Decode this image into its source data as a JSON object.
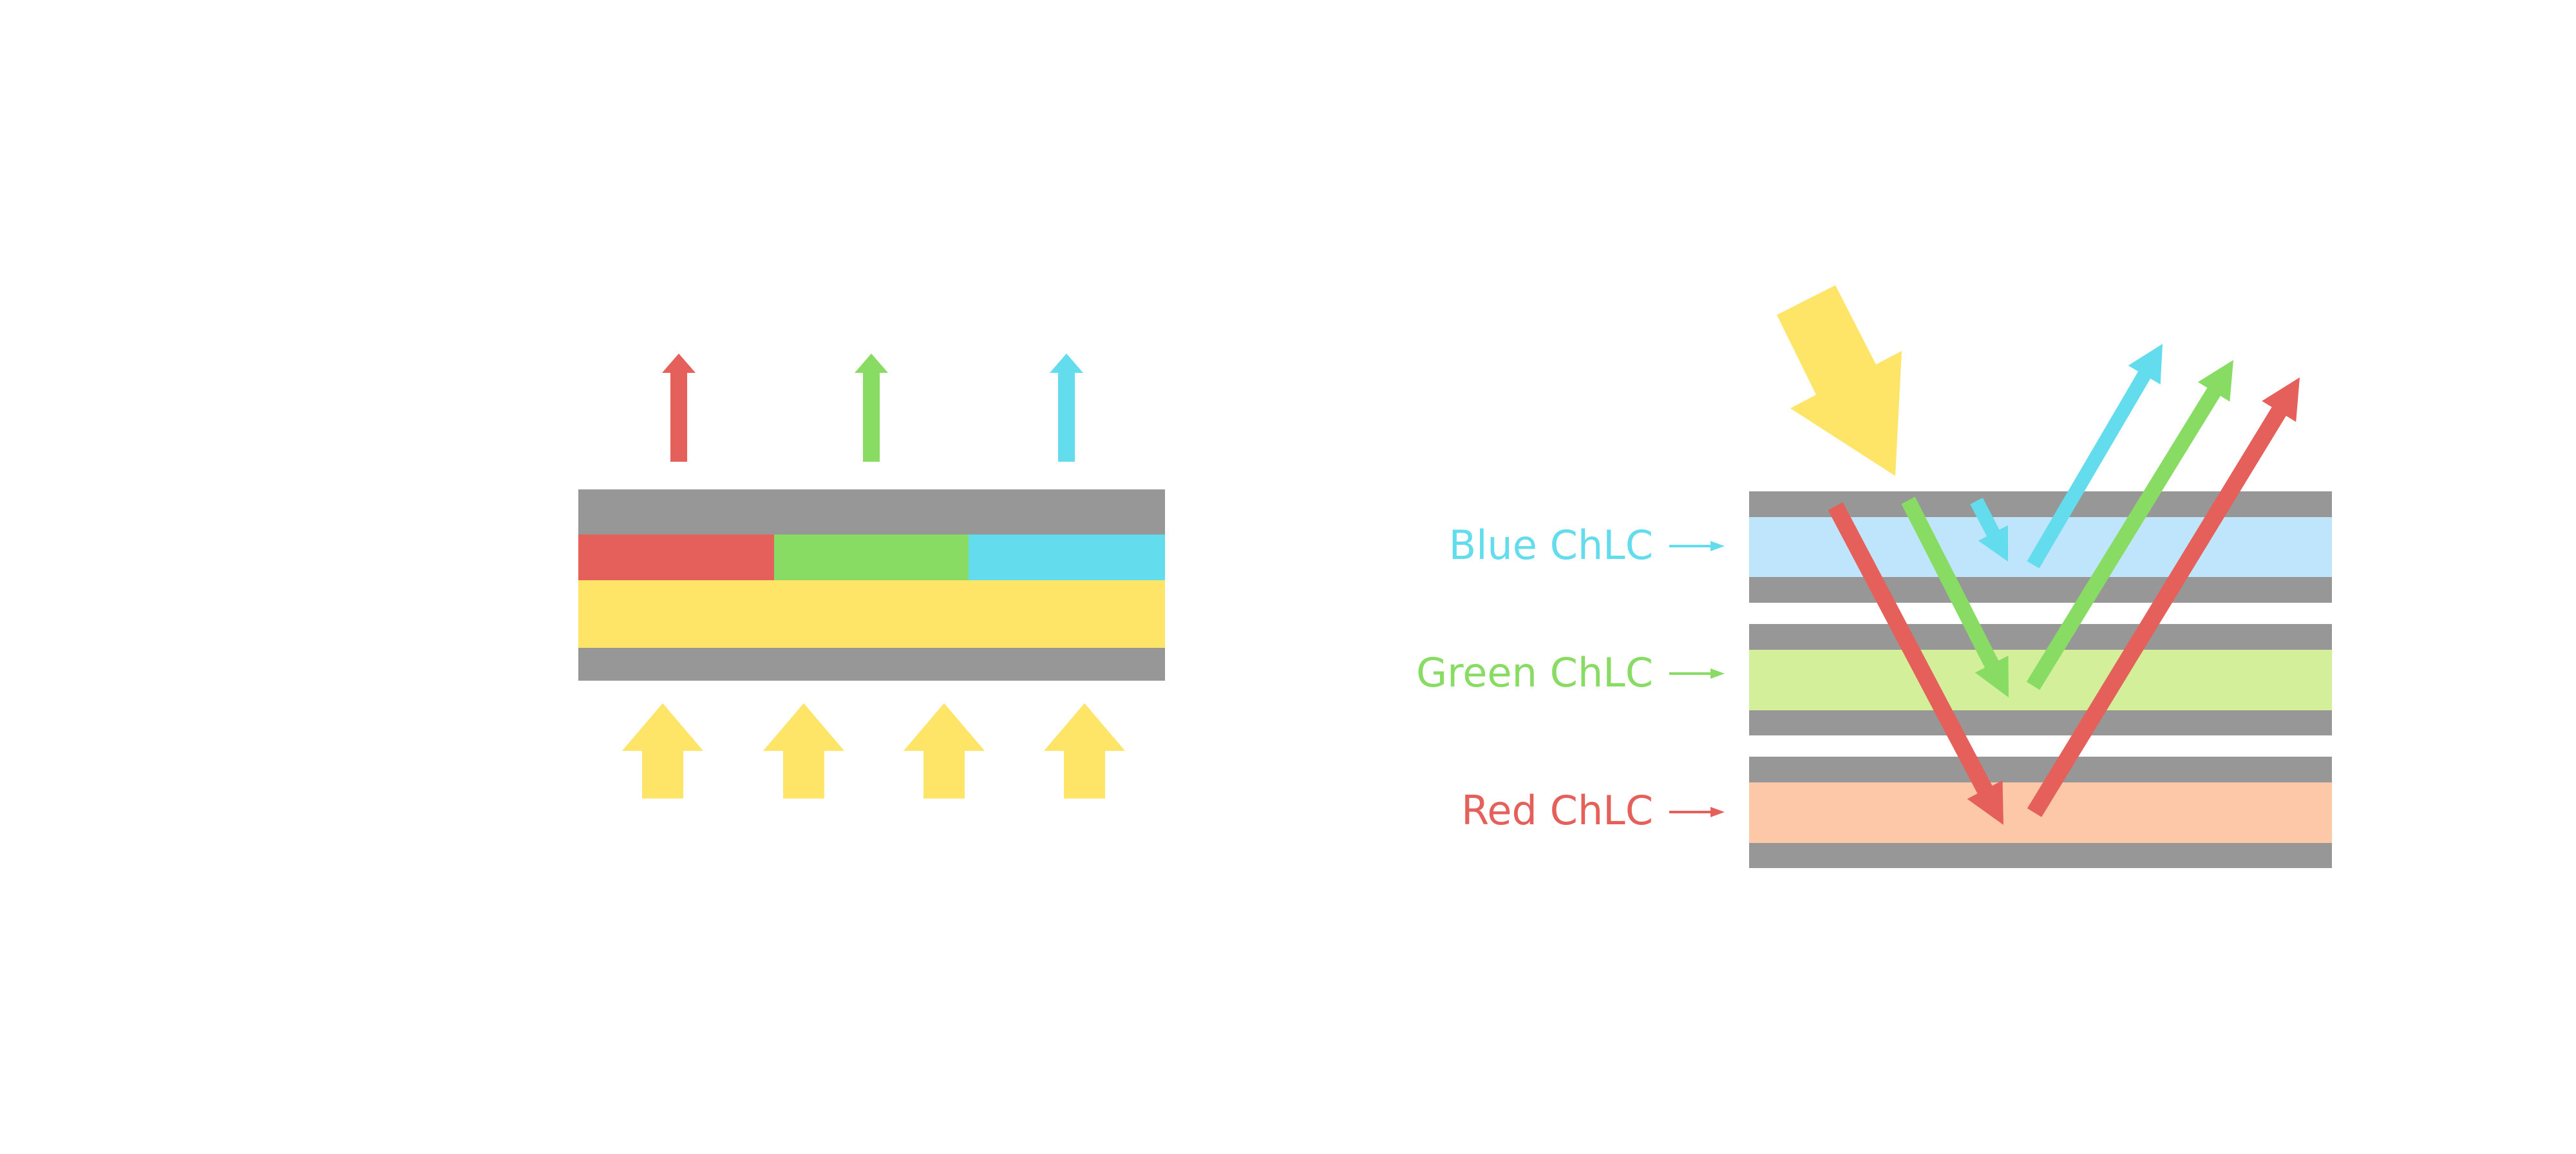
{
  "colors": {
    "red": "#E6605B",
    "green": "#88DC63",
    "blue": "#63DCEE",
    "yellow": "#FEE567",
    "gray": "#979797",
    "blue_layer": "#BEE5FC",
    "green_layer": "#D3EF9A",
    "red_layer": "#FDC8A8"
  },
  "right_panel": {
    "labels": {
      "blue": "Blue ChLC",
      "green": "Green ChLC",
      "red": "Red ChLC"
    }
  }
}
